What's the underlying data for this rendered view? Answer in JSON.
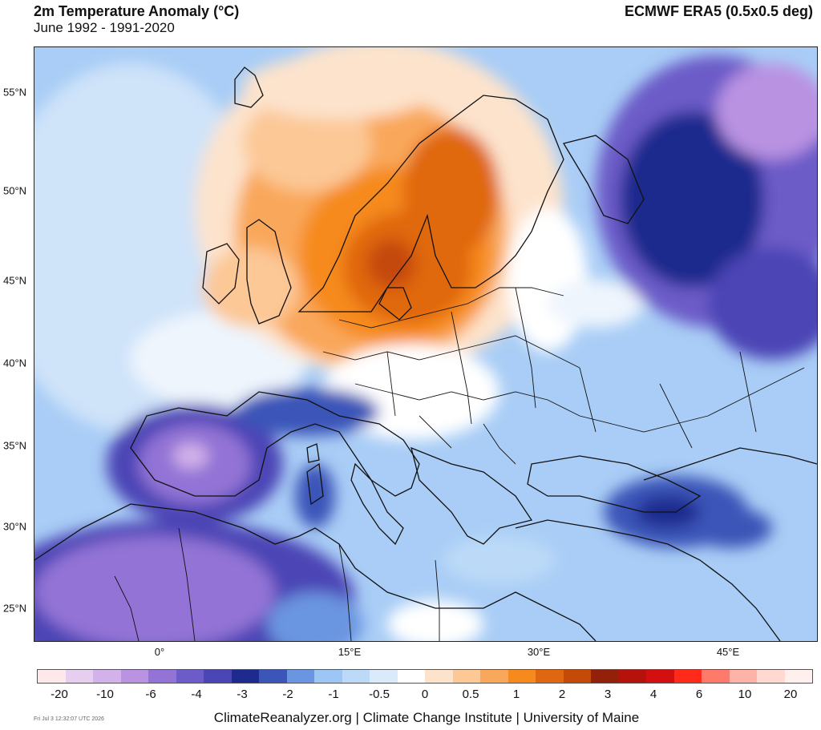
{
  "header": {
    "title": "2m Temperature Anomaly (°C)",
    "subtitle": "June 1992 - 1991-2020",
    "source": "ECMWF ERA5 (0.5x0.5 deg)"
  },
  "axes": {
    "lat_labels": [
      "55°N",
      "50°N",
      "45°N",
      "40°N",
      "35°N",
      "30°N",
      "25°N"
    ],
    "lon_labels": [
      "0°",
      "15°E",
      "30°E",
      "45°E"
    ]
  },
  "colorbar": {
    "colors": [
      "#fde8ec",
      "#e6cfee",
      "#d3b2ea",
      "#b992e2",
      "#9373d6",
      "#6c5cc8",
      "#4b45b5",
      "#1e2b8e",
      "#3b55b8",
      "#6a95e0",
      "#9ec6f5",
      "#bcdaf8",
      "#dbeafb",
      "#ffffff",
      "#fde3cc",
      "#fcc896",
      "#f9a75a",
      "#f68a1f",
      "#e06710",
      "#c44a08",
      "#93210a",
      "#b5120e",
      "#d40f10",
      "#ff2a1a",
      "#ff7a6b",
      "#ffb3a8",
      "#ffd9d2",
      "#fff0ee"
    ],
    "labels": [
      "-20",
      "-10",
      "-6",
      "-4",
      "-3",
      "-2",
      "-1",
      "-0.5",
      "0",
      "0.5",
      "1",
      "2",
      "3",
      "4",
      "6",
      "10",
      "20"
    ]
  },
  "footer": {
    "timestamp": "Fri Jul  3 12:32:07 UTC 2026",
    "credit": "ClimateReanalyzer.org | Climate Change Institute | University of Maine"
  }
}
